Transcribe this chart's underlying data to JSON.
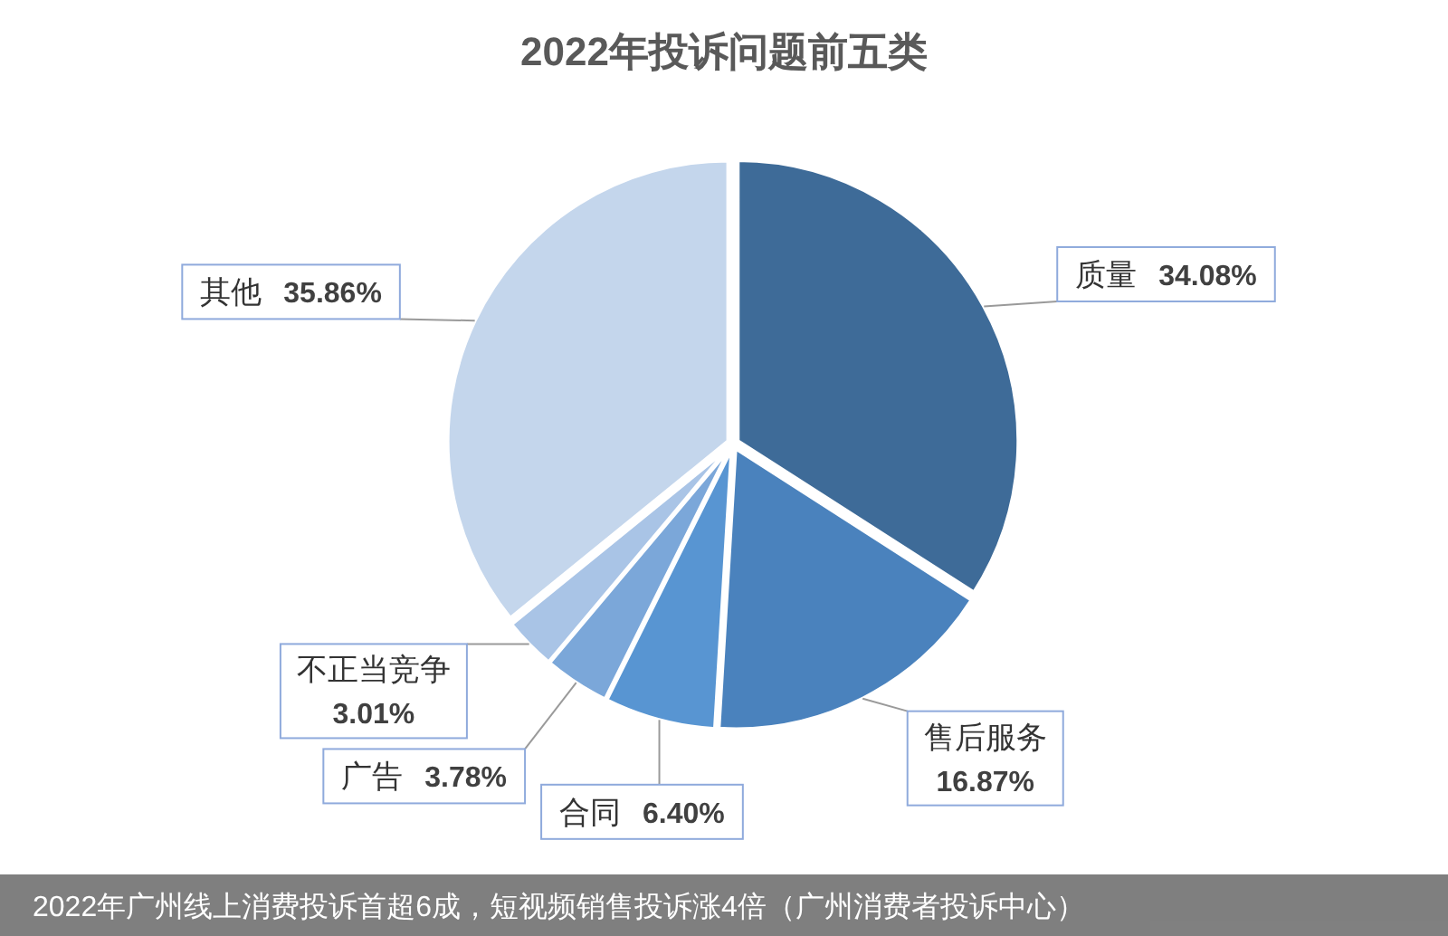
{
  "chart_data": {
    "type": "pie",
    "title": "2022年投诉问题前五类",
    "categories": [
      "质量",
      "售后服务",
      "合同",
      "广告",
      "不正当竞争",
      "其他"
    ],
    "values": [
      34.08,
      16.87,
      6.4,
      3.78,
      3.01,
      35.86
    ],
    "value_labels": [
      "34.08%",
      "16.87%",
      "6.40%",
      "3.78%",
      "3.01%",
      "35.86%"
    ],
    "colors": [
      "#3e6b98",
      "#4a82bd",
      "#5895d2",
      "#7ba7d9",
      "#a9c4e6",
      "#c4d6ec"
    ],
    "annotations": [
      "2022年广州线上消费投诉首超6成，短视频销售投诉涨4倍（广州消费者投诉中心）"
    ]
  }
}
